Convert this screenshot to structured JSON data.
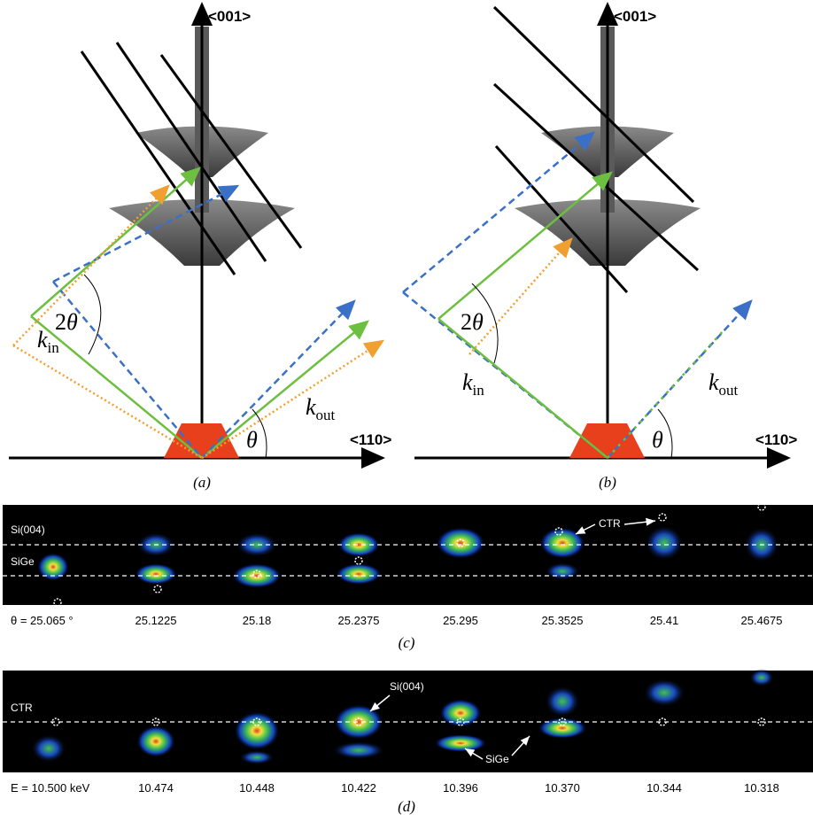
{
  "panel_a": {
    "axis_vertical": "<001>",
    "axis_horizontal": "<110>",
    "two": "2",
    "theta": "θ",
    "k": "k",
    "in": "in",
    "out": "out",
    "caption": "(a)"
  },
  "panel_b": {
    "axis_vertical": "<001>",
    "axis_horizontal": "<110>",
    "two": "2",
    "theta": "θ",
    "k": "k",
    "in": "in",
    "out": "out",
    "caption": "(b)"
  },
  "panel_c": {
    "label_top": "Si(004)",
    "label_bottom": "SiGe",
    "label_ctr": "CTR",
    "frames": [
      "θ = 25.065 °",
      "25.1225",
      "25.18",
      "25.2375",
      "25.295",
      "25.3525",
      "25.41",
      "25.4675"
    ],
    "caption": "(c)"
  },
  "panel_d": {
    "label_ctr": "CTR",
    "label_top": "Si(004)",
    "label_bottom": "SiGe",
    "frames": [
      "E = 10.500 keV",
      "10.474",
      "10.448",
      "10.422",
      "10.396",
      "10.370",
      "10.344",
      "10.318"
    ],
    "caption": "(d)"
  }
}
